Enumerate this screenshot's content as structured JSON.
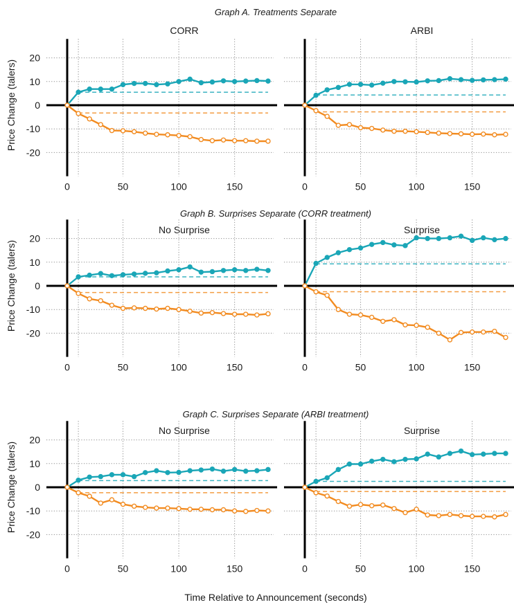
{
  "colors": {
    "teal": "#1aa6b7",
    "orange": "#f28b20",
    "grid": "#8c8c8c",
    "axis": "#000000"
  },
  "x_axis_label": "Time Relative to Announcement (seconds)",
  "y_axis_label": "Price Change (talers)",
  "chart_data": [
    {
      "type": "line",
      "group_title": "Graph A. Treatments Separate",
      "panel_title": "CORR",
      "x": [
        0,
        10,
        20,
        30,
        40,
        50,
        60,
        70,
        80,
        90,
        100,
        110,
        120,
        130,
        140,
        150,
        160,
        170,
        180
      ],
      "xlim": [
        0,
        185
      ],
      "ylim": [
        -30,
        28
      ],
      "xticks": [
        0,
        50,
        100,
        150
      ],
      "yticks": [
        20,
        10,
        0,
        -10,
        -20
      ],
      "series": [
        {
          "color": "teal",
          "marker": "filled",
          "values": [
            0,
            5.5,
            6.8,
            6.8,
            6.8,
            8.7,
            9.2,
            9.2,
            8.7,
            9.0,
            10.0,
            11.0,
            9.5,
            9.8,
            10.3,
            10.0,
            10.2,
            10.4,
            10.2
          ]
        },
        {
          "color": "orange",
          "marker": "hollow",
          "values": [
            0,
            -3.5,
            -5.8,
            -8.2,
            -10.7,
            -10.8,
            -11.2,
            -11.8,
            -12.3,
            -12.5,
            -12.8,
            -13.3,
            -14.5,
            -15.0,
            -14.7,
            -15.0,
            -15.0,
            -15.2,
            -15.2
          ]
        }
      ],
      "reference_lines": [
        {
          "color": "teal",
          "y": 5.5,
          "x_start": 10
        },
        {
          "color": "orange",
          "y": -3.3,
          "x_start": 10
        }
      ]
    },
    {
      "type": "line",
      "group_title": "Graph A. Treatments Separate",
      "panel_title": "ARBI",
      "x": [
        0,
        10,
        20,
        30,
        40,
        50,
        60,
        70,
        80,
        90,
        100,
        110,
        120,
        130,
        140,
        150,
        160,
        170,
        180
      ],
      "xlim": [
        0,
        185
      ],
      "ylim": [
        -30,
        28
      ],
      "xticks": [
        0,
        50,
        100,
        150
      ],
      "yticks": [
        20,
        10,
        0,
        -10,
        -20
      ],
      "series": [
        {
          "color": "teal",
          "marker": "filled",
          "values": [
            0,
            4.2,
            6.5,
            7.5,
            8.8,
            8.8,
            8.5,
            9.3,
            10.0,
            9.9,
            9.8,
            10.3,
            10.4,
            11.2,
            10.8,
            10.5,
            10.7,
            10.8,
            11.0
          ]
        },
        {
          "color": "orange",
          "marker": "hollow",
          "values": [
            0,
            -2.3,
            -4.7,
            -8.5,
            -8.2,
            -9.5,
            -9.8,
            -10.5,
            -11.0,
            -11.0,
            -11.2,
            -11.5,
            -11.8,
            -12.0,
            -12.1,
            -12.3,
            -12.2,
            -12.5,
            -12.3
          ]
        }
      ],
      "reference_lines": [
        {
          "color": "teal",
          "y": 4.3,
          "x_start": 10
        },
        {
          "color": "orange",
          "y": -2.8,
          "x_start": 10
        }
      ]
    },
    {
      "type": "line",
      "group_title": "Graph B. Surprises Separate (CORR treatment)",
      "panel_title": "No Surprise",
      "x": [
        0,
        10,
        20,
        30,
        40,
        50,
        60,
        70,
        80,
        90,
        100,
        110,
        120,
        130,
        140,
        150,
        160,
        170,
        180
      ],
      "xlim": [
        0,
        185
      ],
      "ylim": [
        -30,
        28
      ],
      "xticks": [
        0,
        50,
        100,
        150
      ],
      "yticks": [
        20,
        10,
        0,
        -10,
        -20
      ],
      "series": [
        {
          "color": "teal",
          "marker": "filled",
          "values": [
            0,
            3.8,
            4.5,
            5.2,
            4.3,
            4.7,
            5.0,
            5.3,
            5.5,
            6.3,
            6.8,
            8.0,
            5.8,
            6.0,
            6.5,
            6.8,
            6.5,
            7.0,
            6.5
          ]
        },
        {
          "color": "orange",
          "marker": "hollow",
          "values": [
            0,
            -3.2,
            -5.5,
            -6.3,
            -8.2,
            -9.5,
            -9.3,
            -9.5,
            -9.8,
            -9.5,
            -10.0,
            -10.7,
            -11.5,
            -11.3,
            -11.7,
            -12.0,
            -12.0,
            -12.3,
            -11.8
          ]
        }
      ],
      "reference_lines": [
        {
          "color": "teal",
          "y": 3.8,
          "x_start": 10
        },
        {
          "color": "orange",
          "y": -2.8,
          "x_start": 10
        }
      ]
    },
    {
      "type": "line",
      "group_title": "Graph B. Surprises Separate (CORR treatment)",
      "panel_title": "Surprise",
      "x": [
        0,
        10,
        20,
        30,
        40,
        50,
        60,
        70,
        80,
        90,
        100,
        110,
        120,
        130,
        140,
        150,
        160,
        170,
        180
      ],
      "xlim": [
        0,
        185
      ],
      "ylim": [
        -30,
        28
      ],
      "xticks": [
        0,
        50,
        100,
        150
      ],
      "yticks": [
        20,
        10,
        0,
        -10,
        -20
      ],
      "series": [
        {
          "color": "teal",
          "marker": "filled",
          "values": [
            0,
            9.5,
            12.0,
            14.0,
            15.3,
            16.0,
            17.5,
            18.3,
            17.3,
            17.0,
            20.3,
            20.0,
            20.0,
            20.3,
            21.0,
            19.2,
            20.3,
            19.5,
            20.0
          ]
        },
        {
          "color": "orange",
          "marker": "hollow",
          "values": [
            0,
            -2.5,
            -4.0,
            -10.0,
            -12.0,
            -12.3,
            -13.3,
            -15.0,
            -14.3,
            -16.5,
            -16.7,
            -17.5,
            -20.0,
            -22.8,
            -19.7,
            -19.5,
            -19.5,
            -19.2,
            -21.8
          ]
        }
      ],
      "reference_lines": [
        {
          "color": "teal",
          "y": 9.3,
          "x_start": 10
        },
        {
          "color": "orange",
          "y": -2.5,
          "x_start": 10
        }
      ]
    },
    {
      "type": "line",
      "group_title": "Graph C. Surprises Separate (ARBI treatment)",
      "panel_title": "No Surprise",
      "x": [
        0,
        10,
        20,
        30,
        40,
        50,
        60,
        70,
        80,
        90,
        100,
        110,
        120,
        130,
        140,
        150,
        160,
        170,
        180
      ],
      "xlim": [
        0,
        185
      ],
      "ylim": [
        -30,
        28
      ],
      "xticks": [
        0,
        50,
        100,
        150
      ],
      "yticks": [
        20,
        10,
        0,
        -10,
        -20
      ],
      "series": [
        {
          "color": "teal",
          "marker": "filled",
          "values": [
            0,
            3.0,
            4.3,
            4.5,
            5.3,
            5.3,
            4.5,
            6.2,
            7.0,
            6.2,
            6.3,
            7.0,
            7.3,
            7.7,
            6.8,
            7.5,
            6.8,
            7.0,
            7.5
          ]
        },
        {
          "color": "orange",
          "marker": "hollow",
          "values": [
            0,
            -2.3,
            -3.8,
            -6.7,
            -5.3,
            -7.2,
            -8.0,
            -8.5,
            -8.8,
            -8.8,
            -9.0,
            -9.3,
            -9.3,
            -9.5,
            -9.5,
            -10.0,
            -10.2,
            -9.8,
            -10.0
          ]
        }
      ],
      "reference_lines": [
        {
          "color": "teal",
          "y": 2.8,
          "x_start": 10
        },
        {
          "color": "orange",
          "y": -2.3,
          "x_start": 10
        }
      ]
    },
    {
      "type": "line",
      "group_title": "Graph C. Surprises Separate (ARBI treatment)",
      "panel_title": "Surprise",
      "x": [
        0,
        10,
        20,
        30,
        40,
        50,
        60,
        70,
        80,
        90,
        100,
        110,
        120,
        130,
        140,
        150,
        160,
        170,
        180
      ],
      "xlim": [
        0,
        185
      ],
      "ylim": [
        -30,
        28
      ],
      "xticks": [
        0,
        50,
        100,
        150
      ],
      "yticks": [
        20,
        10,
        0,
        -10,
        -20
      ],
      "series": [
        {
          "color": "teal",
          "marker": "filled",
          "values": [
            0,
            2.5,
            4.0,
            7.5,
            9.8,
            9.8,
            11.0,
            11.8,
            10.8,
            11.8,
            12.0,
            14.0,
            12.8,
            14.3,
            15.3,
            13.8,
            14.0,
            14.3,
            14.3
          ]
        },
        {
          "color": "orange",
          "marker": "hollow",
          "values": [
            0,
            -2.3,
            -3.7,
            -6.0,
            -8.0,
            -7.3,
            -7.8,
            -7.5,
            -9.0,
            -10.7,
            -9.3,
            -11.7,
            -12.0,
            -11.5,
            -12.0,
            -12.3,
            -12.3,
            -12.5,
            -11.5
          ]
        }
      ],
      "reference_lines": [
        {
          "color": "teal",
          "y": 2.5,
          "x_start": 10
        },
        {
          "color": "orange",
          "y": -1.8,
          "x_start": 10
        }
      ]
    }
  ]
}
